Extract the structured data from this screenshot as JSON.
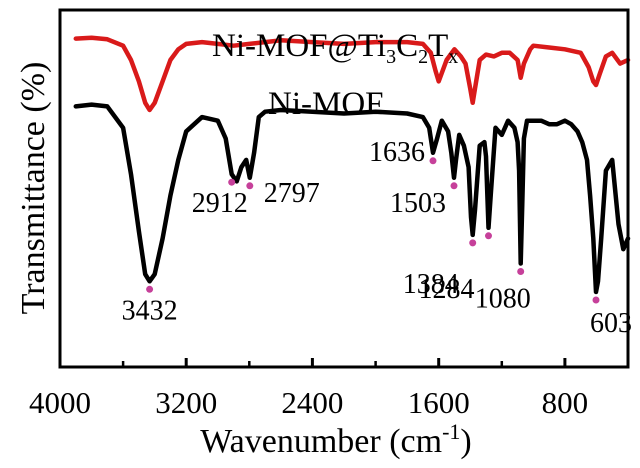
{
  "chart_data": {
    "type": "line",
    "title": "",
    "xlabel": "Wavenumber (cm",
    "xlabel_sup": "-1",
    "xlabel_close": ")",
    "ylabel": "Transmittance (%)",
    "xlim": [
      4000,
      400
    ],
    "x_reversed": true,
    "ylim": [
      0,
      10
    ],
    "grid": false,
    "legend": "none",
    "x_ticks": [
      {
        "value": 4000,
        "label": "4000"
      },
      {
        "value": 3200,
        "label": "3200"
      },
      {
        "value": 2400,
        "label": "2400"
      },
      {
        "value": 1600,
        "label": "1600"
      },
      {
        "value": 800,
        "label": "800"
      }
    ],
    "series": [
      {
        "name": "Ni-MOF@Ti3C2Tx",
        "label_parts": [
          "Ni-MOF@Ti",
          "3",
          "C",
          "2",
          "T",
          "x"
        ],
        "color": "#d91a1a",
        "x": [
          3900,
          3800,
          3700,
          3600,
          3550,
          3500,
          3460,
          3432,
          3400,
          3350,
          3300,
          3250,
          3200,
          3100,
          3000,
          2900,
          2800,
          2700,
          2600,
          2400,
          2200,
          2000,
          1800,
          1700,
          1650,
          1620,
          1600,
          1550,
          1500,
          1460,
          1430,
          1400,
          1384,
          1370,
          1340,
          1300,
          1250,
          1200,
          1150,
          1100,
          1080,
          1060,
          1020,
          1000,
          900,
          800,
          700,
          650,
          620,
          603,
          580,
          540,
          500,
          450,
          400
        ],
        "y": [
          9.2,
          9.22,
          9.18,
          9.0,
          8.6,
          8.0,
          7.4,
          7.2,
          7.4,
          8.0,
          8.6,
          8.9,
          9.05,
          9.1,
          9.05,
          9.0,
          9.05,
          9.1,
          9.15,
          9.1,
          9.05,
          9.1,
          9.1,
          9.05,
          8.8,
          8.3,
          8.0,
          8.6,
          8.9,
          8.7,
          8.5,
          7.8,
          7.4,
          7.8,
          8.6,
          8.75,
          8.7,
          8.8,
          8.8,
          8.6,
          8.1,
          8.5,
          8.9,
          9.0,
          8.95,
          8.9,
          8.8,
          8.4,
          8.0,
          7.9,
          8.2,
          8.7,
          8.8,
          8.5,
          8.6
        ]
      },
      {
        "name": "Ni-MOF",
        "color": "#000000",
        "x": [
          3900,
          3800,
          3700,
          3600,
          3550,
          3500,
          3460,
          3432,
          3400,
          3350,
          3300,
          3250,
          3200,
          3100,
          3000,
          2950,
          2912,
          2880,
          2850,
          2820,
          2797,
          2770,
          2740,
          2700,
          2600,
          2400,
          2200,
          2000,
          1800,
          1700,
          1660,
          1636,
          1610,
          1580,
          1540,
          1520,
          1503,
          1490,
          1470,
          1440,
          1410,
          1395,
          1384,
          1370,
          1340,
          1310,
          1300,
          1284,
          1270,
          1240,
          1200,
          1160,
          1120,
          1100,
          1090,
          1080,
          1070,
          1060,
          1040,
          1000,
          950,
          900,
          850,
          800,
          760,
          720,
          690,
          660,
          640,
          620,
          603,
          590,
          570,
          540,
          500,
          460,
          430,
          400
        ],
        "y": [
          7.3,
          7.35,
          7.3,
          6.7,
          5.4,
          3.8,
          2.6,
          2.4,
          2.6,
          3.6,
          4.8,
          5.8,
          6.6,
          7.0,
          6.9,
          6.4,
          5.4,
          5.2,
          5.6,
          5.8,
          5.3,
          6.0,
          7.0,
          7.15,
          7.2,
          7.15,
          7.1,
          7.15,
          7.1,
          7.0,
          6.7,
          6.0,
          6.4,
          6.9,
          6.6,
          6.0,
          5.3,
          5.8,
          6.5,
          6.2,
          5.6,
          4.2,
          3.7,
          4.4,
          6.2,
          6.3,
          5.9,
          3.9,
          4.8,
          6.7,
          6.5,
          6.9,
          6.7,
          6.3,
          5.5,
          2.9,
          4.6,
          6.4,
          6.9,
          6.9,
          6.9,
          6.8,
          6.8,
          6.9,
          6.8,
          6.6,
          6.3,
          5.8,
          4.8,
          3.6,
          2.1,
          2.4,
          3.6,
          5.5,
          5.8,
          4.0,
          3.3,
          3.6
        ]
      }
    ],
    "peak_labels": [
      {
        "x": 3432,
        "label": "3432"
      },
      {
        "x": 2912,
        "label": "2912"
      },
      {
        "x": 2797,
        "label": "2797"
      },
      {
        "x": 1636,
        "label": "1636"
      },
      {
        "x": 1503,
        "label": "1503"
      },
      {
        "x": 1384,
        "label": "1384"
      },
      {
        "x": 1284,
        "label": "1284"
      },
      {
        "x": 1080,
        "label": "1080"
      },
      {
        "x": 603,
        "label": "603"
      }
    ],
    "marker_color": "#c6409a"
  }
}
